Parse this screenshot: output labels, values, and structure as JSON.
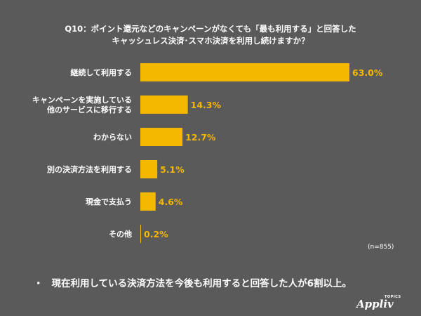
{
  "chart_data": {
    "type": "bar",
    "orientation": "horizontal",
    "title_lines": [
      "Q10：ポイント還元などのキャンペーンがなくても「最も利用する」と回答した",
      "キャッシュレス決済･スマホ決済を利用し続けますか？"
    ],
    "categories": [
      [
        "継続して利用する"
      ],
      [
        "キャンペーンを実施している",
        "他のサービスに移行する"
      ],
      [
        "わからない"
      ],
      [
        "別の決済方法を利用する"
      ],
      [
        "現金で支払う"
      ],
      [
        "その他"
      ]
    ],
    "values": [
      63.0,
      14.3,
      12.7,
      5.1,
      4.6,
      0.2
    ],
    "value_labels": [
      "63.0%",
      "14.3%",
      "12.7%",
      "5.1%",
      "4.6%",
      "0.2%"
    ],
    "xlim": [
      0,
      63.0
    ],
    "bar_color": "#f5b800",
    "grid": false,
    "legend": "none",
    "sample_note": "(n=855)"
  },
  "summary": {
    "bullet": "・",
    "text": "現在利用している決済方法を今後も利用すると回答した人が6割以上。"
  },
  "brand": {
    "name": "Appliv",
    "tag": "TOPICS"
  }
}
